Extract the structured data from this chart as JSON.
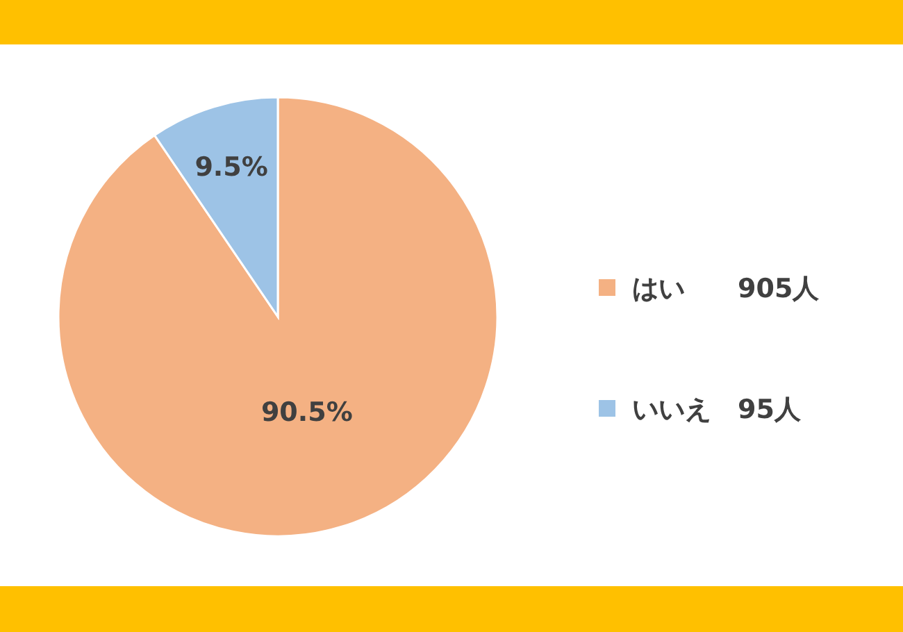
{
  "chart_data": {
    "type": "pie",
    "categories": [
      "はい　　905人",
      "いいえ　95人"
    ],
    "values": [
      90.5,
      9.5
    ],
    "value_labels": [
      "90.5%",
      "9.5%"
    ],
    "colors": [
      "#f4b183",
      "#9dc3e6"
    ],
    "legend": "right"
  }
}
